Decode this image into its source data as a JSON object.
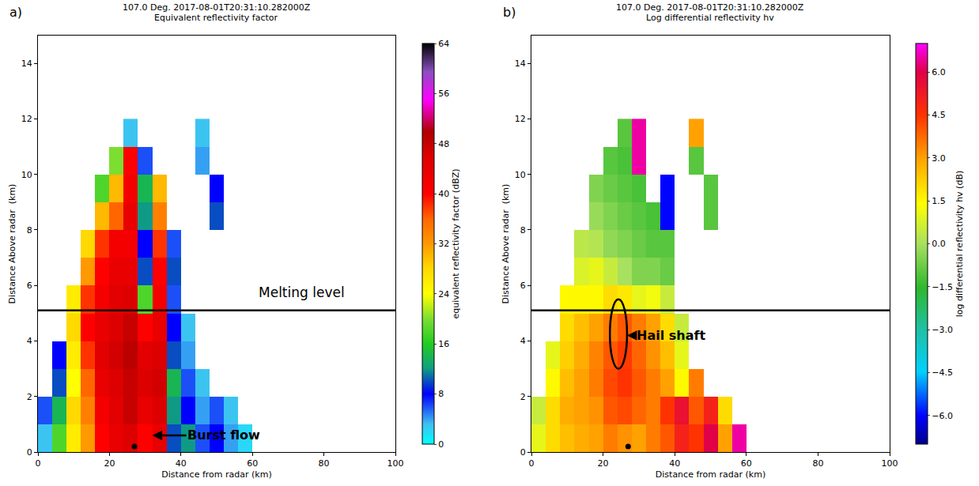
{
  "chart_data": [
    {
      "type": "heatmap",
      "label": "a)",
      "title": "107.0 Deg. 2017-08-01T20:31:10.282000Z",
      "subtitle": "Equivalent reflectivity factor",
      "x_label": "Distance from radar (km)",
      "y_label": "Distance Above radar  (km)",
      "xlim": [
        0,
        100
      ],
      "xticks": [
        0,
        20,
        40,
        60,
        80,
        100
      ],
      "ylim": [
        0,
        15
      ],
      "yticks": [
        0,
        2,
        4,
        6,
        8,
        10,
        12,
        14
      ],
      "grid": false,
      "x_edges": [
        0,
        4,
        8,
        12,
        16,
        20,
        24,
        28,
        32,
        36,
        40,
        44,
        48,
        52,
        56,
        60
      ],
      "y_edges": [
        0,
        1,
        2,
        3,
        4,
        5,
        6,
        7,
        8,
        9,
        10,
        11,
        12
      ],
      "cells": [
        [
          3,
          18,
          26,
          32,
          40,
          44,
          46,
          40,
          44,
          10,
          12,
          6,
          8,
          4,
          2
        ],
        [
          6,
          14,
          28,
          34,
          42,
          45,
          48,
          44,
          46,
          12,
          8,
          4,
          6,
          3,
          null
        ],
        [
          null,
          10,
          24,
          36,
          44,
          46,
          48,
          46,
          47,
          14,
          6,
          3,
          null,
          null,
          null
        ],
        [
          null,
          8,
          26,
          38,
          45,
          47,
          49,
          45,
          46,
          10,
          4,
          null,
          null,
          null,
          null
        ],
        [
          null,
          null,
          28,
          40,
          44,
          46,
          48,
          40,
          44,
          8,
          3,
          null,
          null,
          null,
          null
        ],
        [
          null,
          null,
          26,
          38,
          42,
          45,
          46,
          18,
          42,
          6,
          null,
          null,
          null,
          null,
          null
        ],
        [
          null,
          null,
          null,
          32,
          40,
          44,
          44,
          10,
          40,
          10,
          null,
          null,
          null,
          null,
          null
        ],
        [
          null,
          null,
          null,
          28,
          38,
          42,
          42,
          8,
          38,
          6,
          null,
          null,
          null,
          null,
          null
        ],
        [
          null,
          null,
          null,
          null,
          30,
          36,
          44,
          12,
          34,
          null,
          null,
          null,
          10,
          null,
          null
        ],
        [
          null,
          null,
          null,
          null,
          18,
          30,
          42,
          14,
          30,
          null,
          null,
          null,
          8,
          null,
          null
        ],
        [
          null,
          null,
          null,
          null,
          null,
          20,
          40,
          6,
          null,
          null,
          null,
          4,
          null,
          null,
          null
        ],
        [
          null,
          null,
          null,
          null,
          null,
          null,
          3,
          null,
          null,
          null,
          null,
          3,
          null,
          null,
          null
        ]
      ],
      "zlim": [
        0,
        64
      ],
      "zticks": [
        0,
        8,
        16,
        24,
        32,
        40,
        48,
        56,
        64
      ],
      "colorbar_title": "equivalent reflectivity factor (dBZ)",
      "melting_level": {
        "y": 5.1,
        "label": "Melting level"
      },
      "point": {
        "x": 27,
        "y": 0.2
      },
      "annotations": [
        {
          "text": "Burst flow"
        }
      ]
    },
    {
      "type": "heatmap",
      "label": "b)",
      "title": "107.0 Deg. 2017-08-01T20:31:10.282000Z",
      "subtitle": "Log differential reflectivity hv",
      "x_label": "Distance from radar (km)",
      "y_label": "Distance Above radar  (km)",
      "xlim": [
        0,
        100
      ],
      "xticks": [
        0,
        20,
        40,
        60,
        80,
        100
      ],
      "ylim": [
        0,
        15
      ],
      "yticks": [
        0,
        2,
        4,
        6,
        8,
        10,
        12,
        14
      ],
      "grid": false,
      "x_edges": [
        0,
        4,
        8,
        12,
        16,
        20,
        24,
        28,
        32,
        36,
        40,
        44,
        48,
        52,
        56,
        60
      ],
      "y_edges": [
        0,
        1,
        2,
        3,
        4,
        5,
        6,
        7,
        8,
        9,
        10,
        11,
        12
      ],
      "cells": [
        [
          1.0,
          2.0,
          2.5,
          2.8,
          3.0,
          3.5,
          3.2,
          3.0,
          3.5,
          4.0,
          5.0,
          4.5,
          6.0,
          3.0,
          6.5
        ],
        [
          0.5,
          2.0,
          2.8,
          3.0,
          3.2,
          4.0,
          4.2,
          3.8,
          3.5,
          4.5,
          5.5,
          4.0,
          5.0,
          2.0,
          null
        ],
        [
          null,
          1.5,
          2.5,
          3.0,
          3.5,
          4.2,
          4.5,
          4.0,
          3.5,
          3.0,
          1.5,
          3.5,
          null,
          null,
          null
        ],
        [
          null,
          1.0,
          2.2,
          2.8,
          3.4,
          4.0,
          4.4,
          3.8,
          3.2,
          2.5,
          1.0,
          null,
          null,
          null,
          null
        ],
        [
          null,
          null,
          2.0,
          2.5,
          3.0,
          3.5,
          4.0,
          3.5,
          3.0,
          2.0,
          0.5,
          null,
          null,
          null,
          null
        ],
        [
          null,
          null,
          1.5,
          1.5,
          1.5,
          2.0,
          1.8,
          1.0,
          1.2,
          0.5,
          null,
          null,
          null,
          null,
          null
        ],
        [
          null,
          null,
          null,
          0.8,
          1.0,
          0.5,
          0.0,
          -0.5,
          -0.5,
          -0.8,
          null,
          null,
          null,
          null,
          null
        ],
        [
          null,
          null,
          null,
          0.3,
          0.2,
          -0.3,
          -0.5,
          -0.8,
          -1.0,
          -1.0,
          null,
          null,
          null,
          null,
          null
        ],
        [
          null,
          null,
          null,
          null,
          -0.2,
          -0.5,
          -0.8,
          -1.0,
          -1.2,
          -6.0,
          null,
          null,
          -1.0,
          null,
          null
        ],
        [
          null,
          null,
          null,
          null,
          -0.5,
          -0.8,
          -1.0,
          -1.2,
          null,
          -6.0,
          null,
          null,
          -1.0,
          null,
          null
        ],
        [
          null,
          null,
          null,
          null,
          null,
          -1.0,
          -1.2,
          6.5,
          null,
          null,
          null,
          -1.0,
          null,
          null,
          null
        ],
        [
          null,
          null,
          null,
          null,
          null,
          null,
          -1.0,
          6.5,
          null,
          null,
          null,
          3.0,
          null,
          null,
          null
        ]
      ],
      "zlim": [
        -7,
        7
      ],
      "zticks": [
        {
          "value": -6,
          "label": "−6.0"
        },
        {
          "value": -4.5,
          "label": "−4.5"
        },
        {
          "value": -3,
          "label": "−3.0"
        },
        {
          "value": -1.5,
          "label": "−1.5"
        },
        {
          "value": 0,
          "label": "0.0"
        },
        {
          "value": 1.5,
          "label": "1.5"
        },
        {
          "value": 3,
          "label": "3.0"
        },
        {
          "value": 4.5,
          "label": "4.5"
        },
        {
          "value": 6,
          "label": "6.0"
        }
      ],
      "colorbar_title": "log differential reflectivity hv (dB)",
      "melting_level": {
        "y": 5.1
      },
      "point": {
        "x": 27,
        "y": 0.2
      },
      "annotations": [
        {
          "text": "Hail shaft"
        }
      ]
    }
  ]
}
